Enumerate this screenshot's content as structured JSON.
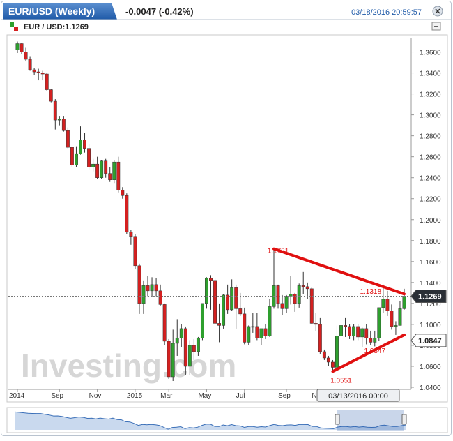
{
  "header": {
    "title": "EUR/USD (Weekly)",
    "change": "-0.0047 (-0.42%)",
    "timestamp": "03/18/2016 20:59:57",
    "legend": "EUR / USD:1.1269"
  },
  "chart_data": {
    "type": "candlestick",
    "up_color": "#2ea02e",
    "down_color": "#d42020",
    "ylim": [
      1.038,
      1.373
    ],
    "yticks": [
      {
        "value": 1.04,
        "label": "1.0400"
      },
      {
        "value": 1.06,
        "label": "1.0600"
      },
      {
        "value": 1.08,
        "label": "1.0800"
      },
      {
        "value": 1.1,
        "label": "1.1000"
      },
      {
        "value": 1.12,
        "label": "1.1200"
      },
      {
        "value": 1.14,
        "label": "1.1400"
      },
      {
        "value": 1.16,
        "label": "1.1600"
      },
      {
        "value": 1.18,
        "label": "1.1800"
      },
      {
        "value": 1.2,
        "label": "1.2000"
      },
      {
        "value": 1.22,
        "label": "1.2200"
      },
      {
        "value": 1.24,
        "label": "1.2400"
      },
      {
        "value": 1.26,
        "label": "1.2600"
      },
      {
        "value": 1.28,
        "label": "1.2800"
      },
      {
        "value": 1.3,
        "label": "1.3000"
      },
      {
        "value": 1.32,
        "label": "1.3200"
      },
      {
        "value": 1.34,
        "label": "1.3400"
      },
      {
        "value": 1.36,
        "label": "1.3600"
      }
    ],
    "xticks": [
      {
        "value": 0,
        "label": "2014"
      },
      {
        "value": 10,
        "label": "Sep"
      },
      {
        "value": 19,
        "label": "Nov"
      },
      {
        "value": 28,
        "label": "2015"
      },
      {
        "value": 36,
        "label": "Mar"
      },
      {
        "value": 45,
        "label": "May"
      },
      {
        "value": 54,
        "label": "Jul"
      },
      {
        "value": 64,
        "label": "Sep"
      },
      {
        "value": 72,
        "label": "N"
      }
    ],
    "candles": [
      [
        1.362,
        1.37,
        1.359,
        1.368
      ],
      [
        1.368,
        1.369,
        1.358,
        1.36
      ],
      [
        1.36,
        1.364,
        1.351,
        1.353
      ],
      [
        1.353,
        1.356,
        1.342,
        1.343
      ],
      [
        1.343,
        1.345,
        1.338,
        1.341
      ],
      [
        1.341,
        1.344,
        1.333,
        1.34
      ],
      [
        1.34,
        1.342,
        1.333,
        1.339
      ],
      [
        1.339,
        1.34,
        1.323,
        1.324
      ],
      [
        1.324,
        1.325,
        1.312,
        1.313
      ],
      [
        1.313,
        1.315,
        1.286,
        1.295
      ],
      [
        1.295,
        1.299,
        1.29,
        1.296
      ],
      [
        1.296,
        1.299,
        1.284,
        1.285
      ],
      [
        1.285,
        1.288,
        1.268,
        1.269
      ],
      [
        1.269,
        1.27,
        1.25,
        1.252
      ],
      [
        1.252,
        1.27,
        1.25,
        1.263
      ],
      [
        1.263,
        1.289,
        1.262,
        1.276
      ],
      [
        1.276,
        1.283,
        1.264,
        1.268
      ],
      [
        1.268,
        1.272,
        1.248,
        1.25
      ],
      [
        1.25,
        1.258,
        1.246,
        1.253
      ],
      [
        1.253,
        1.26,
        1.239,
        1.24
      ],
      [
        1.24,
        1.257,
        1.239,
        1.256
      ],
      [
        1.256,
        1.258,
        1.24,
        1.244
      ],
      [
        1.244,
        1.25,
        1.236,
        1.238
      ],
      [
        1.238,
        1.257,
        1.235,
        1.255
      ],
      [
        1.255,
        1.26,
        1.226,
        1.228
      ],
      [
        1.228,
        1.231,
        1.22,
        1.223
      ],
      [
        1.223,
        1.225,
        1.186,
        1.188
      ],
      [
        1.188,
        1.19,
        1.176,
        1.184
      ],
      [
        1.184,
        1.186,
        1.153,
        1.156
      ],
      [
        1.156,
        1.158,
        1.11,
        1.12
      ],
      [
        1.12,
        1.142,
        1.11,
        1.137
      ],
      [
        1.137,
        1.146,
        1.127,
        1.132
      ],
      [
        1.132,
        1.145,
        1.126,
        1.138
      ],
      [
        1.138,
        1.144,
        1.127,
        1.132
      ],
      [
        1.132,
        1.138,
        1.118,
        1.119
      ],
      [
        1.119,
        1.12,
        1.08,
        1.084
      ],
      [
        1.084,
        1.086,
        1.048,
        1.05
      ],
      [
        1.05,
        1.095,
        1.046,
        1.082
      ],
      [
        1.082,
        1.105,
        1.07,
        1.087
      ],
      [
        1.087,
        1.1,
        1.078,
        1.096
      ],
      [
        1.096,
        1.098,
        1.052,
        1.06
      ],
      [
        1.06,
        1.085,
        1.052,
        1.08
      ],
      [
        1.08,
        1.086,
        1.066,
        1.074
      ],
      [
        1.074,
        1.088,
        1.07,
        1.087
      ],
      [
        1.087,
        1.12,
        1.085,
        1.12
      ],
      [
        1.12,
        1.145,
        1.115,
        1.144
      ],
      [
        1.144,
        1.147,
        1.114,
        1.142
      ],
      [
        1.142,
        1.144,
        1.1,
        1.101
      ],
      [
        1.101,
        1.12,
        1.083,
        1.099
      ],
      [
        1.099,
        1.129,
        1.096,
        1.128
      ],
      [
        1.128,
        1.138,
        1.11,
        1.114
      ],
      [
        1.114,
        1.143,
        1.113,
        1.135
      ],
      [
        1.135,
        1.138,
        1.096,
        1.115
      ],
      [
        1.115,
        1.13,
        1.108,
        1.11
      ],
      [
        1.11,
        1.116,
        1.081,
        1.083
      ],
      [
        1.083,
        1.099,
        1.08,
        1.098
      ],
      [
        1.098,
        1.111,
        1.092,
        1.098
      ],
      [
        1.098,
        1.111,
        1.085,
        1.087
      ],
      [
        1.087,
        1.095,
        1.08,
        1.096
      ],
      [
        1.096,
        1.1,
        1.086,
        1.089
      ],
      [
        1.089,
        1.124,
        1.088,
        1.117
      ],
      [
        1.117,
        1.1721,
        1.115,
        1.137
      ],
      [
        1.137,
        1.138,
        1.115,
        1.12
      ],
      [
        1.12,
        1.128,
        1.109,
        1.115
      ],
      [
        1.115,
        1.128,
        1.111,
        1.127
      ],
      [
        1.127,
        1.146,
        1.119,
        1.129
      ],
      [
        1.129,
        1.13,
        1.112,
        1.12
      ],
      [
        1.12,
        1.139,
        1.116,
        1.137
      ],
      [
        1.137,
        1.15,
        1.129,
        1.136
      ],
      [
        1.136,
        1.14,
        1.124,
        1.134
      ],
      [
        1.134,
        1.135,
        1.1,
        1.101
      ],
      [
        1.101,
        1.111,
        1.094,
        1.1
      ],
      [
        1.1,
        1.106,
        1.072,
        1.074
      ],
      [
        1.074,
        1.076,
        1.066,
        1.068
      ],
      [
        1.068,
        1.07,
        1.06,
        1.064
      ],
      [
        1.064,
        1.066,
        1.0551,
        1.059
      ],
      [
        1.059,
        1.099,
        1.058,
        1.089
      ],
      [
        1.089,
        1.099,
        1.085,
        1.099
      ],
      [
        1.099,
        1.106,
        1.088,
        1.098
      ],
      [
        1.098,
        1.1,
        1.086,
        1.089
      ],
      [
        1.089,
        1.1,
        1.085,
        1.098
      ],
      [
        1.098,
        1.1,
        1.085,
        1.088
      ],
      [
        1.088,
        1.097,
        1.078,
        1.096
      ],
      [
        1.096,
        1.1,
        1.081,
        1.087
      ],
      [
        1.087,
        1.094,
        1.08,
        1.083
      ],
      [
        1.083,
        1.094,
        1.079,
        1.087
      ],
      [
        1.087,
        1.116,
        1.084,
        1.116
      ],
      [
        1.116,
        1.138,
        1.111,
        1.124
      ],
      [
        1.124,
        1.132,
        1.108,
        1.113
      ],
      [
        1.113,
        1.119,
        1.095,
        1.098
      ],
      [
        1.098,
        1.103,
        1.09,
        1.099
      ],
      [
        1.099,
        1.122,
        1.099,
        1.115
      ],
      [
        1.115,
        1.134,
        1.114,
        1.1269
      ]
    ],
    "trendlines": [
      {
        "color": "#e01010",
        "from": [
          61,
          1.1721
        ],
        "to": [
          92,
          1.129
        ]
      },
      {
        "color": "#e01010",
        "from": [
          75,
          1.0551
        ],
        "to": [
          92,
          1.09
        ]
      }
    ],
    "annotations": [
      1.1721,
      1.1318,
      1.0847,
      1.0551
    ],
    "price_labels": [
      1.1269,
      1.0847
    ],
    "crosshair_label": "03/13/2016 00:00",
    "watermark": "Investing.com"
  }
}
